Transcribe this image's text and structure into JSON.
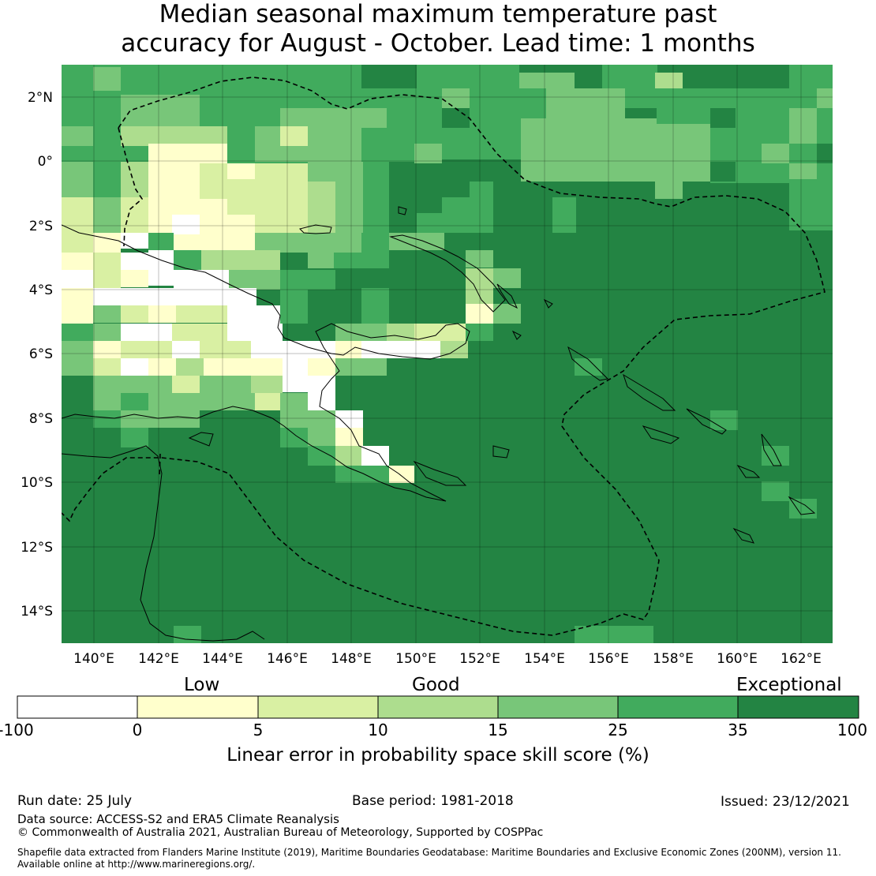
{
  "title": {
    "line1": "Median seasonal maximum temperature past",
    "line2": "accuracy for August - October. Lead time: 1 months"
  },
  "map": {
    "lon_range": [
      139,
      163
    ],
    "lat_range": [
      -15,
      3
    ],
    "lon_ticks": [
      "140°E",
      "142°E",
      "144°E",
      "146°E",
      "148°E",
      "150°E",
      "152°E",
      "154°E",
      "156°E",
      "158°E",
      "160°E",
      "162°E"
    ],
    "lat_ticks": [
      "2°N",
      "0°",
      "2°S",
      "4°S",
      "6°S",
      "8°S",
      "10°S",
      "12°S",
      "14°S"
    ],
    "features": [
      "Papua New Guinea",
      "EEZ boundary (dashed)",
      "coastlines"
    ]
  },
  "colorbar": {
    "category_labels": [
      "Low",
      "Good",
      "Exceptional"
    ],
    "ticks": [
      "-100",
      "0",
      "5",
      "10",
      "15",
      "25",
      "35",
      "100"
    ],
    "bins": [
      {
        "from": -100,
        "to": 0,
        "color": "#ffffff"
      },
      {
        "from": 0,
        "to": 5,
        "color": "#ffffcc"
      },
      {
        "from": 5,
        "to": 10,
        "color": "#d9f0a3"
      },
      {
        "from": 10,
        "to": 15,
        "color": "#addd8e"
      },
      {
        "from": 15,
        "to": 25,
        "color": "#78c679"
      },
      {
        "from": 25,
        "to": 35,
        "color": "#41ab5d"
      },
      {
        "from": 35,
        "to": 100,
        "color": "#238443"
      }
    ],
    "label": "Linear error in probability space skill score (%)"
  },
  "footer": {
    "run_date": "Run date: 25 July",
    "base_period": "Base period: 1981-2018",
    "issued": "Issued: 23/12/2021",
    "data_source": "Data source: ACCESS-S2 and ERA5 Climate Reanalysis",
    "copyright": "© Commonwealth of Australia 2021, Australian Bureau of Meteorology, Supported by COSPPac",
    "shapefile_line1": "Shapefile data extracted from Flanders Marine Institute (2019), Maritime Boundaries Geodatabase: Maritime Boundaries and Exclusive Economic Zones (200NM), version 11.",
    "shapefile_line2": "Available online at http://www.marineregions.org/."
  }
}
